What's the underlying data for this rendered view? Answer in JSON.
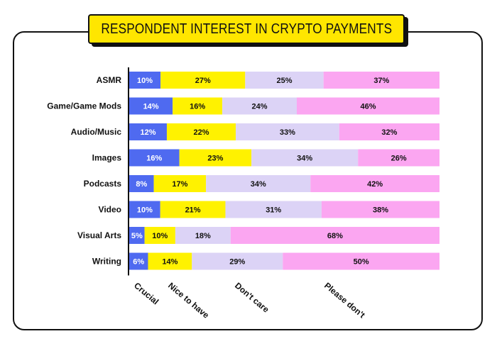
{
  "chart_data": {
    "type": "bar",
    "orientation": "horizontal",
    "stacked": true,
    "title": "RESPONDENT INTEREST IN CRYPTO PAYMENTS",
    "categories": [
      "ASMR",
      "Game/Game Mods",
      "Audio/Music",
      "Images",
      "Podcasts",
      "Video",
      "Visual Arts",
      "Writing"
    ],
    "series": [
      {
        "name": "Crucial",
        "color": "#4f6af0",
        "text_color": "#ffffff",
        "values": [
          10,
          14,
          12,
          16,
          8,
          10,
          5,
          6
        ]
      },
      {
        "name": "Nice to have",
        "color": "#fff200",
        "text_color": "#111111",
        "values": [
          27,
          16,
          22,
          23,
          17,
          21,
          10,
          14
        ]
      },
      {
        "name": "Don't care",
        "color": "#dcd3f6",
        "text_color": "#111111",
        "values": [
          25,
          24,
          33,
          34,
          34,
          31,
          18,
          29
        ]
      },
      {
        "name": "Please don't",
        "color": "#fba6f1",
        "text_color": "#111111",
        "values": [
          37,
          46,
          32,
          26,
          42,
          38,
          68,
          50
        ]
      }
    ],
    "value_suffix": "%",
    "legend_position": "bottom, rotated labels",
    "grid": false
  }
}
